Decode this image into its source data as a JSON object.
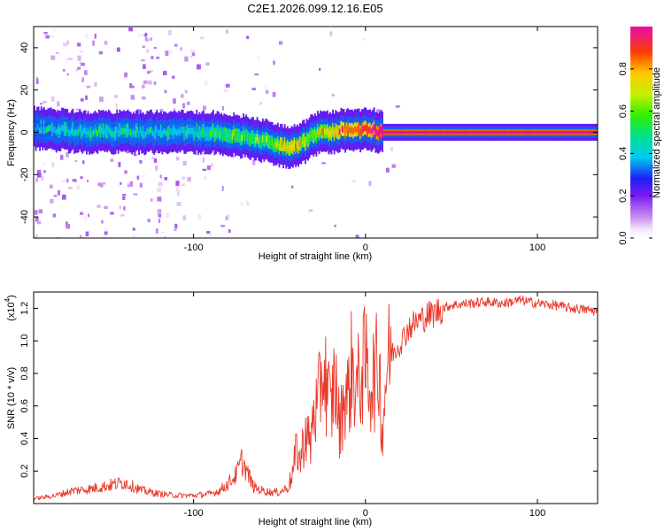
{
  "page_title": "C2E1.2026.099.12.16.E05",
  "colors": {
    "line": "#e8382a",
    "axis": "#000000",
    "background": "#ffffff"
  },
  "chart_data": [
    {
      "type": "heatmap",
      "title": "C2E1.2026.099.12.16.E05",
      "xlabel": "Height of straight line (km)",
      "ylabel": "Frequency (Hz)",
      "xlim": [
        -193,
        135
      ],
      "ylim": [
        -50,
        50
      ],
      "x_ticks": [
        -100,
        0,
        100
      ],
      "x_tick_labels": [
        "-100",
        "0",
        "100"
      ],
      "y_ticks": [
        -40,
        -20,
        0,
        20,
        40
      ],
      "y_tick_labels": [
        "-40",
        "-20",
        "0",
        "20",
        "40"
      ],
      "colorbar": {
        "label": "Normalized spectral amplitude",
        "range": [
          0,
          1
        ],
        "ticks": [
          0.0,
          0.2,
          0.4,
          0.6,
          0.8
        ],
        "tick_labels": [
          "0.0",
          "0.2",
          "0.4",
          "0.6",
          "0.8"
        ]
      },
      "ridge": {
        "x": [
          -193,
          -180,
          -160,
          -140,
          -120,
          -100,
          -90,
          -80,
          -70,
          -60,
          -50,
          -45,
          -40,
          -35,
          -30,
          -25,
          -20,
          -15,
          -10,
          -5,
          0,
          5,
          10,
          20,
          40,
          60,
          80,
          100,
          120,
          135
        ],
        "frequency": [
          2,
          1,
          0,
          0,
          0,
          0,
          0,
          -1,
          -2,
          -4,
          -6,
          -7,
          -6,
          -4,
          -1,
          0,
          0,
          1,
          1,
          1,
          2,
          1,
          0,
          0,
          0,
          0,
          0,
          0,
          0,
          0
        ],
        "amplitude": [
          0.35,
          0.38,
          0.4,
          0.4,
          0.38,
          0.4,
          0.45,
          0.5,
          0.55,
          0.52,
          0.65,
          0.75,
          0.7,
          0.6,
          0.6,
          0.7,
          0.75,
          0.8,
          0.85,
          0.85,
          0.9,
          0.95,
          1.0,
          1.0,
          1.0,
          1.0,
          1.0,
          1.0,
          1.0,
          1.0
        ]
      }
    },
    {
      "type": "line",
      "xlabel": "Height of straight line (km)",
      "ylabel": "SNR (10 * v/v)",
      "y_scale_label": "(x10",
      "y_scale_exponent": "4",
      "y_scale_close": ")",
      "xlim": [
        -193,
        135
      ],
      "ylim": [
        0,
        13000
      ],
      "x_ticks": [
        -100,
        0,
        100
      ],
      "x_tick_labels": [
        "-100",
        "0",
        "100"
      ],
      "y_ticks": [
        2000,
        4000,
        6000,
        8000,
        10000,
        12000
      ],
      "y_tick_labels": [
        "0.2",
        "0.4",
        "0.6",
        "0.8",
        "1.0",
        "1.2"
      ],
      "series": [
        {
          "name": "SNR",
          "x": [
            -193,
            -180,
            -170,
            -160,
            -150,
            -140,
            -130,
            -120,
            -110,
            -100,
            -90,
            -85,
            -80,
            -75,
            -72,
            -70,
            -65,
            -60,
            -55,
            -50,
            -45,
            -42,
            -40,
            -38,
            -35,
            -32,
            -30,
            -28,
            -25,
            -22,
            -20,
            -18,
            -15,
            -12,
            -10,
            -8,
            -5,
            -2,
            0,
            3,
            6,
            8,
            10,
            11,
            12,
            15,
            20,
            25,
            30,
            35,
            40,
            45,
            50,
            60,
            70,
            80,
            85,
            90,
            95,
            100,
            110,
            120,
            130,
            135
          ],
          "y": [
            300,
            500,
            800,
            900,
            1100,
            1300,
            800,
            600,
            500,
            500,
            600,
            800,
            1200,
            1800,
            2600,
            2200,
            1000,
            800,
            700,
            700,
            1000,
            2000,
            3500,
            2500,
            4500,
            3500,
            6000,
            5500,
            8500,
            7000,
            5500,
            8000,
            4500,
            7000,
            6500,
            8500,
            7000,
            8200,
            8500,
            7500,
            8000,
            8500,
            4000,
            6500,
            8200,
            9200,
            9800,
            10800,
            11200,
            11500,
            11700,
            12000,
            12200,
            12300,
            12400,
            12300,
            12400,
            12500,
            12400,
            12300,
            12200,
            12000,
            11900,
            11800
          ]
        }
      ]
    }
  ]
}
